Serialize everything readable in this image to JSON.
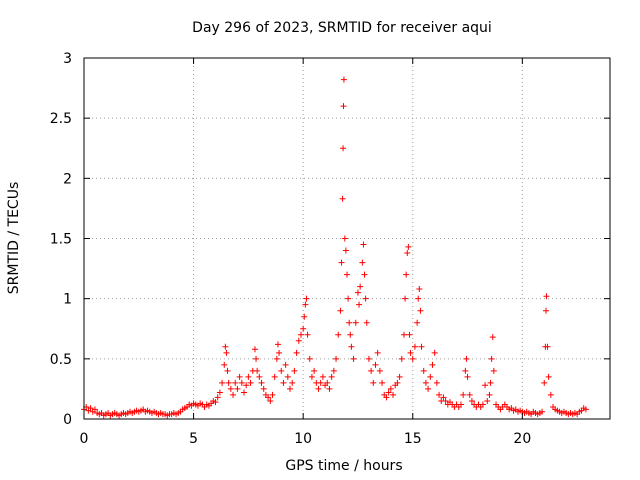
{
  "chart_data": {
    "type": "scatter",
    "title": "Day 296 of 2023, SRMTID for receiver aqui",
    "xlabel": "GPS time / hours",
    "ylabel": "SRMTID / TECUs",
    "xlim": [
      0,
      24
    ],
    "ylim": [
      0,
      3
    ],
    "xticks": [
      0,
      5,
      10,
      15,
      20
    ],
    "yticks": [
      0,
      0.5,
      1,
      1.5,
      2,
      2.5,
      3
    ],
    "ytick_labels": [
      "0",
      "0.5",
      "1",
      "1.5",
      "2",
      "2.5",
      "3"
    ],
    "grid": true,
    "marker": "+",
    "series": [
      {
        "name": "SRMTID",
        "color": "#ff0000",
        "points": [
          [
            0.0,
            0.08
          ],
          [
            0.1,
            0.1
          ],
          [
            0.2,
            0.07
          ],
          [
            0.3,
            0.09
          ],
          [
            0.4,
            0.06
          ],
          [
            0.5,
            0.08
          ],
          [
            0.6,
            0.05
          ],
          [
            0.7,
            0.04
          ],
          [
            0.8,
            0.05
          ],
          [
            0.9,
            0.03
          ],
          [
            1.0,
            0.04
          ],
          [
            1.1,
            0.05
          ],
          [
            1.2,
            0.03
          ],
          [
            1.3,
            0.04
          ],
          [
            1.4,
            0.05
          ],
          [
            1.5,
            0.04
          ],
          [
            1.6,
            0.03
          ],
          [
            1.7,
            0.04
          ],
          [
            1.8,
            0.05
          ],
          [
            1.9,
            0.04
          ],
          [
            2.0,
            0.05
          ],
          [
            2.1,
            0.06
          ],
          [
            2.2,
            0.05
          ],
          [
            2.3,
            0.06
          ],
          [
            2.4,
            0.07
          ],
          [
            2.5,
            0.06
          ],
          [
            2.6,
            0.07
          ],
          [
            2.7,
            0.08
          ],
          [
            2.8,
            0.06
          ],
          [
            2.9,
            0.07
          ],
          [
            3.0,
            0.06
          ],
          [
            3.1,
            0.05
          ],
          [
            3.2,
            0.06
          ],
          [
            3.3,
            0.05
          ],
          [
            3.4,
            0.04
          ],
          [
            3.5,
            0.05
          ],
          [
            3.6,
            0.04
          ],
          [
            3.7,
            0.04
          ],
          [
            3.8,
            0.03
          ],
          [
            3.9,
            0.04
          ],
          [
            4.0,
            0.04
          ],
          [
            4.1,
            0.05
          ],
          [
            4.2,
            0.04
          ],
          [
            4.3,
            0.05
          ],
          [
            4.4,
            0.06
          ],
          [
            4.5,
            0.08
          ],
          [
            4.6,
            0.09
          ],
          [
            4.7,
            0.1
          ],
          [
            4.8,
            0.12
          ],
          [
            4.9,
            0.11
          ],
          [
            5.0,
            0.13
          ],
          [
            5.1,
            0.12
          ],
          [
            5.2,
            0.11
          ],
          [
            5.3,
            0.13
          ],
          [
            5.4,
            0.12
          ],
          [
            5.5,
            0.1
          ],
          [
            5.6,
            0.12
          ],
          [
            5.7,
            0.11
          ],
          [
            5.8,
            0.13
          ],
          [
            5.9,
            0.15
          ],
          [
            6.0,
            0.14
          ],
          [
            6.1,
            0.18
          ],
          [
            6.2,
            0.22
          ],
          [
            6.3,
            0.3
          ],
          [
            6.4,
            0.45
          ],
          [
            6.45,
            0.6
          ],
          [
            6.5,
            0.55
          ],
          [
            6.55,
            0.4
          ],
          [
            6.6,
            0.3
          ],
          [
            6.7,
            0.25
          ],
          [
            6.8,
            0.2
          ],
          [
            6.9,
            0.3
          ],
          [
            7.0,
            0.25
          ],
          [
            7.1,
            0.35
          ],
          [
            7.2,
            0.3
          ],
          [
            7.3,
            0.22
          ],
          [
            7.4,
            0.28
          ],
          [
            7.5,
            0.35
          ],
          [
            7.6,
            0.3
          ],
          [
            7.7,
            0.4
          ],
          [
            7.8,
            0.58
          ],
          [
            7.85,
            0.5
          ],
          [
            7.9,
            0.4
          ],
          [
            8.0,
            0.35
          ],
          [
            8.1,
            0.3
          ],
          [
            8.2,
            0.25
          ],
          [
            8.3,
            0.2
          ],
          [
            8.4,
            0.18
          ],
          [
            8.5,
            0.15
          ],
          [
            8.6,
            0.2
          ],
          [
            8.7,
            0.35
          ],
          [
            8.8,
            0.5
          ],
          [
            8.85,
            0.62
          ],
          [
            8.9,
            0.55
          ],
          [
            9.0,
            0.4
          ],
          [
            9.1,
            0.3
          ],
          [
            9.2,
            0.45
          ],
          [
            9.3,
            0.35
          ],
          [
            9.4,
            0.25
          ],
          [
            9.5,
            0.3
          ],
          [
            9.6,
            0.4
          ],
          [
            9.7,
            0.55
          ],
          [
            9.8,
            0.65
          ],
          [
            9.9,
            0.7
          ],
          [
            10.0,
            0.75
          ],
          [
            10.05,
            0.85
          ],
          [
            10.1,
            0.95
          ],
          [
            10.15,
            1.0
          ],
          [
            10.2,
            0.7
          ],
          [
            10.3,
            0.5
          ],
          [
            10.4,
            0.35
          ],
          [
            10.5,
            0.4
          ],
          [
            10.6,
            0.3
          ],
          [
            10.7,
            0.25
          ],
          [
            10.8,
            0.3
          ],
          [
            10.9,
            0.35
          ],
          [
            11.0,
            0.28
          ],
          [
            11.1,
            0.3
          ],
          [
            11.2,
            0.25
          ],
          [
            11.3,
            0.35
          ],
          [
            11.4,
            0.4
          ],
          [
            11.5,
            0.5
          ],
          [
            11.6,
            0.7
          ],
          [
            11.7,
            0.9
          ],
          [
            11.75,
            1.3
          ],
          [
            11.8,
            1.83
          ],
          [
            11.82,
            2.25
          ],
          [
            11.84,
            2.6
          ],
          [
            11.86,
            2.82
          ],
          [
            11.9,
            1.5
          ],
          [
            11.95,
            1.4
          ],
          [
            12.0,
            1.2
          ],
          [
            12.05,
            1.0
          ],
          [
            12.1,
            0.8
          ],
          [
            12.15,
            0.7
          ],
          [
            12.2,
            0.6
          ],
          [
            12.3,
            0.5
          ],
          [
            12.4,
            0.8
          ],
          [
            12.5,
            1.05
          ],
          [
            12.55,
            0.95
          ],
          [
            12.6,
            1.1
          ],
          [
            12.7,
            1.3
          ],
          [
            12.75,
            1.45
          ],
          [
            12.8,
            1.2
          ],
          [
            12.85,
            1.0
          ],
          [
            12.9,
            0.8
          ],
          [
            13.0,
            0.5
          ],
          [
            13.1,
            0.4
          ],
          [
            13.2,
            0.3
          ],
          [
            13.3,
            0.45
          ],
          [
            13.4,
            0.55
          ],
          [
            13.5,
            0.4
          ],
          [
            13.6,
            0.3
          ],
          [
            13.7,
            0.2
          ],
          [
            13.8,
            0.18
          ],
          [
            13.9,
            0.22
          ],
          [
            14.0,
            0.25
          ],
          [
            14.1,
            0.2
          ],
          [
            14.2,
            0.28
          ],
          [
            14.3,
            0.3
          ],
          [
            14.4,
            0.35
          ],
          [
            14.5,
            0.5
          ],
          [
            14.6,
            0.7
          ],
          [
            14.65,
            1.0
          ],
          [
            14.7,
            1.2
          ],
          [
            14.75,
            1.38
          ],
          [
            14.8,
            1.43
          ],
          [
            14.85,
            0.7
          ],
          [
            14.9,
            0.55
          ],
          [
            15.0,
            0.5
          ],
          [
            15.1,
            0.6
          ],
          [
            15.2,
            0.8
          ],
          [
            15.25,
            1.0
          ],
          [
            15.3,
            1.08
          ],
          [
            15.35,
            0.9
          ],
          [
            15.4,
            0.6
          ],
          [
            15.5,
            0.4
          ],
          [
            15.6,
            0.3
          ],
          [
            15.7,
            0.25
          ],
          [
            15.8,
            0.35
          ],
          [
            15.9,
            0.45
          ],
          [
            16.0,
            0.55
          ],
          [
            16.1,
            0.3
          ],
          [
            16.2,
            0.2
          ],
          [
            16.3,
            0.15
          ],
          [
            16.4,
            0.18
          ],
          [
            16.5,
            0.15
          ],
          [
            16.6,
            0.12
          ],
          [
            16.7,
            0.14
          ],
          [
            16.8,
            0.12
          ],
          [
            16.9,
            0.1
          ],
          [
            17.0,
            0.12
          ],
          [
            17.1,
            0.1
          ],
          [
            17.2,
            0.12
          ],
          [
            17.3,
            0.2
          ],
          [
            17.4,
            0.4
          ],
          [
            17.45,
            0.5
          ],
          [
            17.5,
            0.35
          ],
          [
            17.6,
            0.2
          ],
          [
            17.7,
            0.15
          ],
          [
            17.8,
            0.12
          ],
          [
            17.9,
            0.1
          ],
          [
            18.0,
            0.12
          ],
          [
            18.1,
            0.1
          ],
          [
            18.2,
            0.12
          ],
          [
            18.3,
            0.28
          ],
          [
            18.4,
            0.15
          ],
          [
            18.5,
            0.2
          ],
          [
            18.55,
            0.3
          ],
          [
            18.6,
            0.5
          ],
          [
            18.65,
            0.68
          ],
          [
            18.7,
            0.4
          ],
          [
            18.8,
            0.12
          ],
          [
            18.9,
            0.1
          ],
          [
            19.0,
            0.08
          ],
          [
            19.1,
            0.1
          ],
          [
            19.2,
            0.12
          ],
          [
            19.3,
            0.1
          ],
          [
            19.4,
            0.08
          ],
          [
            19.5,
            0.09
          ],
          [
            19.6,
            0.07
          ],
          [
            19.7,
            0.08
          ],
          [
            19.8,
            0.06
          ],
          [
            19.9,
            0.07
          ],
          [
            20.0,
            0.06
          ],
          [
            20.1,
            0.05
          ],
          [
            20.2,
            0.06
          ],
          [
            20.3,
            0.05
          ],
          [
            20.4,
            0.04
          ],
          [
            20.5,
            0.06
          ],
          [
            20.6,
            0.05
          ],
          [
            20.7,
            0.04
          ],
          [
            20.8,
            0.05
          ],
          [
            20.9,
            0.06
          ],
          [
            21.0,
            0.3
          ],
          [
            21.05,
            0.6
          ],
          [
            21.08,
            0.9
          ],
          [
            21.1,
            1.02
          ],
          [
            21.15,
            0.6
          ],
          [
            21.2,
            0.35
          ],
          [
            21.3,
            0.2
          ],
          [
            21.4,
            0.1
          ],
          [
            21.5,
            0.08
          ],
          [
            21.6,
            0.07
          ],
          [
            21.7,
            0.06
          ],
          [
            21.8,
            0.05
          ],
          [
            21.9,
            0.06
          ],
          [
            22.0,
            0.05
          ],
          [
            22.1,
            0.04
          ],
          [
            22.2,
            0.05
          ],
          [
            22.3,
            0.04
          ],
          [
            22.4,
            0.05
          ],
          [
            22.5,
            0.04
          ],
          [
            22.6,
            0.06
          ],
          [
            22.7,
            0.07
          ],
          [
            22.8,
            0.09
          ],
          [
            22.9,
            0.08
          ]
        ]
      }
    ]
  }
}
